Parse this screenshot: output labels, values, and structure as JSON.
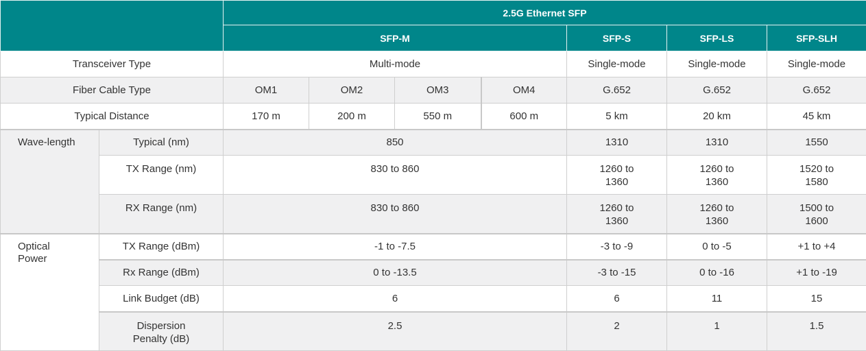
{
  "header": {
    "family": "2.5G Ethernet SFP",
    "models": [
      "SFP-M",
      "SFP-S",
      "SFP-LS",
      "SFP-SLH"
    ]
  },
  "rows": {
    "transceiver": {
      "label": "Transceiver Type",
      "m": "Multi-mode",
      "s": "Single-mode",
      "ls": "Single-mode",
      "slh": "Single-mode"
    },
    "fiber": {
      "label": "Fiber Cable Type",
      "om": [
        "OM1",
        "OM2",
        "OM3",
        "OM4"
      ],
      "s": "G.652",
      "ls": "G.652",
      "slh": "G.652"
    },
    "distance": {
      "label": "Typical Distance",
      "om": [
        "170 m",
        "200 m",
        "550 m",
        "600 m"
      ],
      "s": "5 km",
      "ls": "20 km",
      "slh": "45 km"
    },
    "wavelength": {
      "group": "Wave-length",
      "typical": {
        "label": "Typical (nm)",
        "m": "850",
        "s": "1310",
        "ls": "1310",
        "slh": "1550"
      },
      "tx": {
        "label": "TX Range (nm)",
        "m": "830 to 860",
        "s": [
          "1260 to",
          "1360"
        ],
        "ls": [
          "1260 to",
          "1360"
        ],
        "slh": [
          "1520 to",
          "1580"
        ]
      },
      "rx": {
        "label": "RX Range (nm)",
        "m": "830 to 860",
        "s": [
          "1260 to",
          "1360"
        ],
        "ls": [
          "1260 to",
          "1360"
        ],
        "slh": [
          "1500 to",
          "1600"
        ]
      }
    },
    "optical": {
      "group": [
        "Optical",
        "Power"
      ],
      "tx": {
        "label": "TX Range (dBm)",
        "m": "-1 to -7.5",
        "s": "-3 to -9",
        "ls": "0 to -5",
        "slh": "+1 to +4"
      },
      "rx": {
        "label": "Rx Range (dBm)",
        "m": "0 to -13.5",
        "s": "-3 to -15",
        "ls": "0 to -16",
        "slh": "+1 to -19"
      },
      "budget": {
        "label": "Link Budget (dB)",
        "m": "6",
        "s": "6",
        "ls": "11",
        "slh": "15"
      },
      "dispersion": {
        "label": [
          "Dispersion",
          "Penalty (dB)"
        ],
        "m": "2.5",
        "s": "2",
        "ls": "1",
        "slh": "1.5"
      }
    }
  }
}
